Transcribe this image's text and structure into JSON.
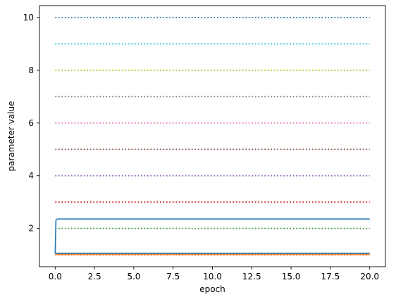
{
  "chart_data": {
    "type": "line",
    "title": "",
    "xlabel": "epoch",
    "ylabel": "parameter value",
    "xlim": [
      -1,
      21
    ],
    "ylim": [
      0.55,
      10.45
    ],
    "xticks": [
      0.0,
      2.5,
      5.0,
      7.5,
      10.0,
      12.5,
      15.0,
      17.5,
      20.0
    ],
    "xtick_labels": [
      "0.0",
      "2.5",
      "5.0",
      "7.5",
      "10.0",
      "12.5",
      "15.0",
      "17.5",
      "20.0"
    ],
    "yticks": [
      2,
      4,
      6,
      8,
      10
    ],
    "ytick_labels": [
      "2",
      "4",
      "6",
      "8",
      "10"
    ],
    "grid": false,
    "legend": null,
    "series": [
      {
        "style": "dotted",
        "color": "#d62728",
        "x": [
          0,
          20
        ],
        "y": [
          1,
          1
        ]
      },
      {
        "style": "dotted",
        "color": "#2ca02c",
        "x": [
          0,
          20
        ],
        "y": [
          2,
          2
        ]
      },
      {
        "style": "dotted",
        "color": "#d62728",
        "x": [
          0,
          20
        ],
        "y": [
          3,
          3
        ]
      },
      {
        "style": "dotted",
        "color": "#9467bd",
        "x": [
          0,
          20
        ],
        "y": [
          4,
          4
        ]
      },
      {
        "style": "dotted",
        "color": "#8c564b",
        "x": [
          0,
          20
        ],
        "y": [
          5,
          5
        ]
      },
      {
        "style": "dotted",
        "color": "#e377c2",
        "x": [
          0,
          20
        ],
        "y": [
          6,
          6
        ]
      },
      {
        "style": "dotted",
        "color": "#7f7f7f",
        "x": [
          0,
          20
        ],
        "y": [
          7,
          7
        ]
      },
      {
        "style": "dotted",
        "color": "#bcbd22",
        "x": [
          0,
          20
        ],
        "y": [
          8,
          8
        ]
      },
      {
        "style": "dotted",
        "color": "#17becf",
        "x": [
          0,
          20
        ],
        "y": [
          9,
          9
        ]
      },
      {
        "style": "dotted",
        "color": "#1f77b4",
        "x": [
          0,
          20
        ],
        "y": [
          10,
          10
        ]
      },
      {
        "style": "solid",
        "color": "#ff7f0e",
        "x": [
          0,
          20
        ],
        "y": [
          1.02,
          1.02
        ]
      },
      {
        "style": "solid",
        "color": "#1f77b4",
        "x": [
          0,
          0.1,
          20
        ],
        "y": [
          1.05,
          1.06,
          1.06
        ]
      },
      {
        "style": "solid",
        "color": "#1f77b4",
        "x": [
          0,
          0.05,
          0.15,
          20
        ],
        "y": [
          1.05,
          2.33,
          2.36,
          2.36
        ]
      }
    ]
  }
}
